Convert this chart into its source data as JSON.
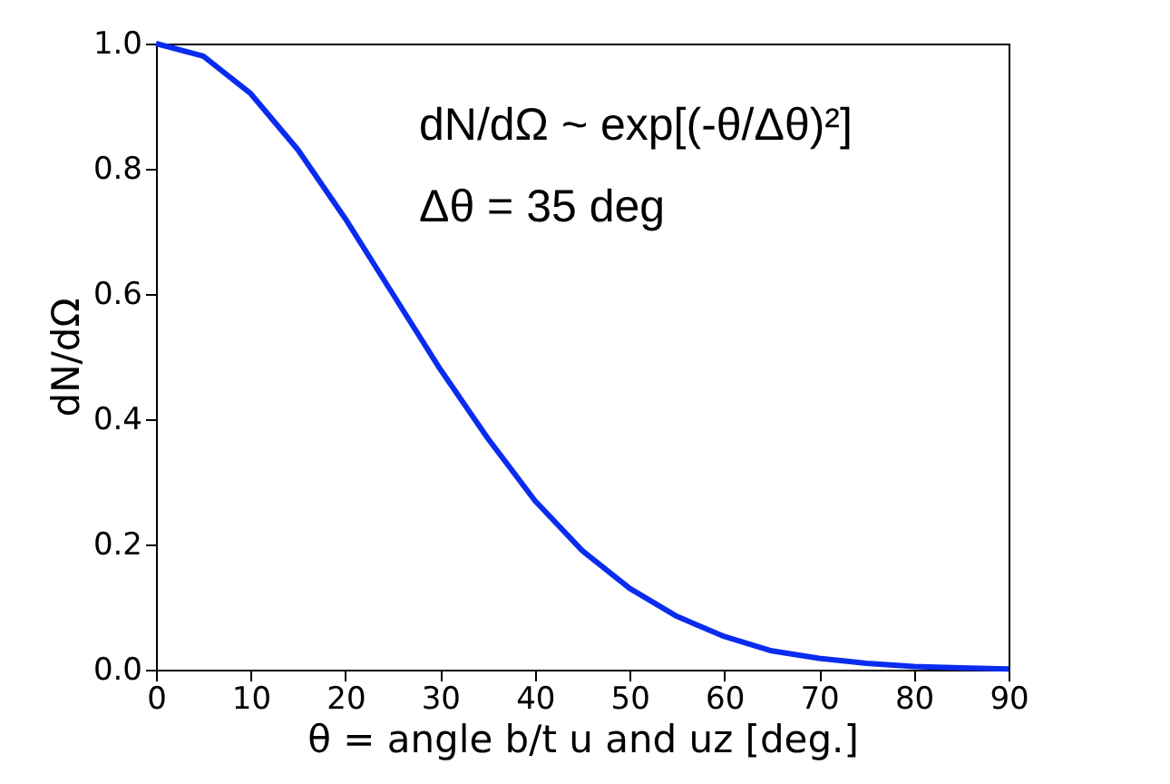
{
  "chart_data": {
    "type": "line",
    "xlabel": "θ = angle b/t u and uz  [deg.]",
    "ylabel": "dN/dΩ",
    "annotations": [
      "dN/dΩ ~ exp[(-θ/Δθ)²]",
      "Δθ = 35 deg"
    ],
    "x": [
      0,
      5,
      10,
      15,
      20,
      25,
      30,
      35,
      40,
      45,
      50,
      55,
      60,
      65,
      70,
      75,
      80,
      85,
      90
    ],
    "series": [
      {
        "color": "#0a2cf0",
        "values": [
          1.0,
          0.98,
          0.92,
          0.83,
          0.72,
          0.6,
          0.48,
          0.37,
          0.27,
          0.19,
          0.13,
          0.085,
          0.053,
          0.03,
          0.018,
          0.01,
          0.005,
          0.003,
          0.001
        ]
      }
    ],
    "xlim": [
      0,
      90
    ],
    "xticks": [
      0,
      10,
      20,
      30,
      40,
      50,
      60,
      70,
      80,
      90
    ],
    "ylim": [
      0,
      1.0
    ],
    "yticks": [
      {
        "value": 0,
        "label": "0.0"
      },
      {
        "value": 0.2,
        "label": "0.2"
      },
      {
        "value": 0.4,
        "label": "0.4"
      },
      {
        "value": 0.6,
        "label": "0.6"
      },
      {
        "value": 0.8,
        "label": "0.8"
      },
      {
        "value": 1.0,
        "label": "1.0"
      }
    ],
    "grid": false,
    "marker": "none",
    "line_style": "solid"
  }
}
